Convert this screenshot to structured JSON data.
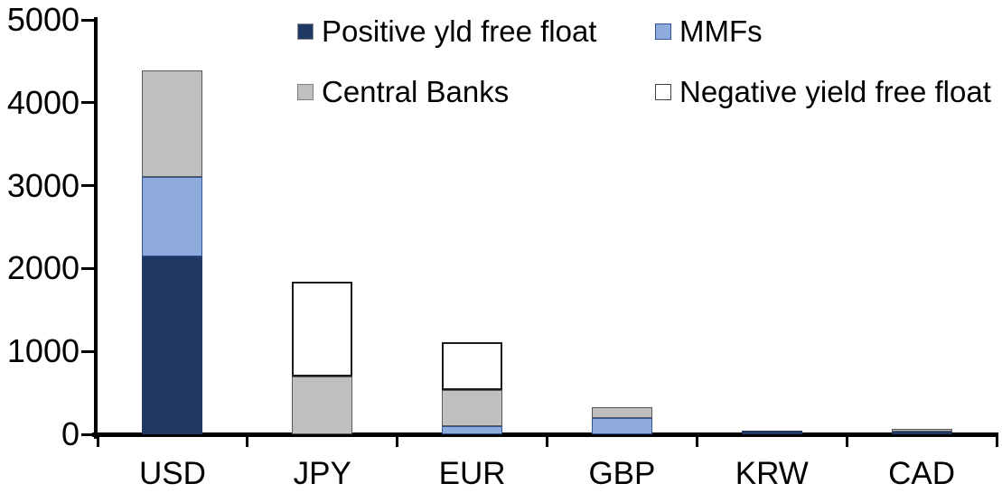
{
  "chart_data": {
    "type": "bar",
    "stacked": true,
    "title": "",
    "xlabel": "",
    "ylabel": "",
    "categories": [
      "USD",
      "JPY",
      "EUR",
      "GBP",
      "KRW",
      "CAD"
    ],
    "series": [
      {
        "name": "Positive yld free float",
        "color": "#1F3864",
        "border": "#1F3864",
        "swatch_border": "#8a8a8a",
        "values": [
          2150,
          0,
          0,
          0,
          40,
          30
        ]
      },
      {
        "name": "MMFs",
        "color": "#8FAADC",
        "border": "#2F5597",
        "swatch_border": "#2F5597",
        "values": [
          950,
          0,
          100,
          200,
          0,
          0
        ]
      },
      {
        "name": "Central Banks",
        "color": "#BFBFBF",
        "border": "#595959",
        "swatch_border": "#7f7f7f",
        "values": [
          1290,
          700,
          430,
          130,
          0,
          30
        ]
      },
      {
        "name": "Negative yield free float",
        "color": "#FFFFFF",
        "border": "#1a1a1a",
        "swatch_border": "#404040",
        "values": [
          0,
          1140,
          580,
          0,
          0,
          0
        ]
      }
    ],
    "ylim": [
      0,
      5000
    ],
    "yticks": [
      0,
      1000,
      2000,
      3000,
      4000,
      5000
    ],
    "legend_position": "top",
    "grid": false,
    "axis_color": "#000000",
    "text_color": "#000000"
  }
}
